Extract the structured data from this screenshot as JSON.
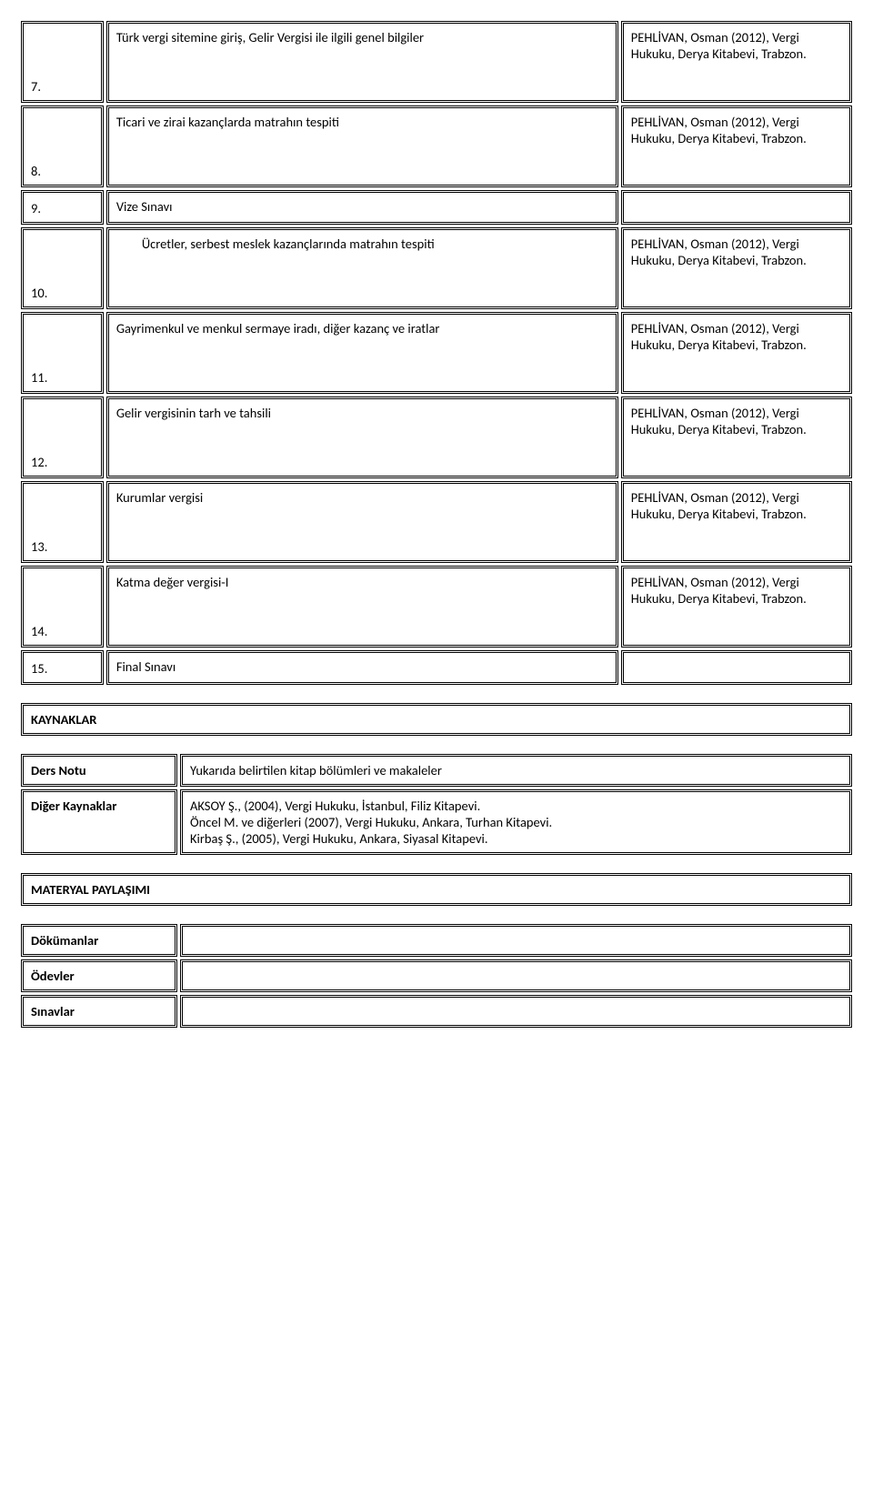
{
  "reference_text": "PEHLİVAN, Osman (2012), Vergi Hukuku, Derya Kitabevi, Trabzon.",
  "weeks": [
    {
      "n": "7.",
      "topic": "Türk vergi sitemine giriş, Gelir Vergisi ile ilgili genel bilgiler",
      "ref": true,
      "indent": false
    },
    {
      "n": "8.",
      "topic": "Ticari ve zirai kazançlarda matrahın tespiti",
      "ref": true,
      "indent": false
    },
    {
      "n": "9.",
      "topic": "Vize Sınavı",
      "ref": false,
      "indent": false,
      "short": true
    },
    {
      "n": "10.",
      "topic": "Ücretler, serbest meslek kazançlarında matrahın tespiti",
      "ref": true,
      "indent": true
    },
    {
      "n": "11.",
      "topic": "Gayrimenkul ve menkul sermaye iradı, diğer kazanç ve iratlar",
      "ref": true,
      "indent": false
    },
    {
      "n": "12.",
      "topic": "Gelir vergisinin tarh ve tahsili",
      "ref": true,
      "indent": false
    },
    {
      "n": "13.",
      "topic": "Kurumlar vergisi",
      "ref": true,
      "indent": false
    },
    {
      "n": "14.",
      "topic": "Katma değer vergisi-I",
      "ref": true,
      "indent": false
    },
    {
      "n": "15.",
      "topic": "Final Sınavı",
      "ref": false,
      "indent": false,
      "short": true
    }
  ],
  "sources": {
    "heading": "KAYNAKLAR",
    "rows": [
      {
        "key": "Ders Notu",
        "val": "Yukarıda belirtilen kitap bölümleri ve makaleler"
      },
      {
        "key": "Diğer Kaynaklar",
        "val": "AKSOY Ş., (2004), Vergi Hukuku, İstanbul, Filiz Kitapevi.\nÖncel M. ve diğerleri (2007), Vergi Hukuku, Ankara, Turhan Kitapevi.\nKirbaş Ş., (2005), Vergi Hukuku, Ankara, Siyasal Kitapevi."
      }
    ]
  },
  "materials": {
    "heading": "MATERYAL PAYLAŞIMI",
    "rows": [
      {
        "key": "Dökümanlar",
        "val": ""
      },
      {
        "key": "Ödevler",
        "val": ""
      },
      {
        "key": "Sınavlar",
        "val": ""
      }
    ]
  }
}
